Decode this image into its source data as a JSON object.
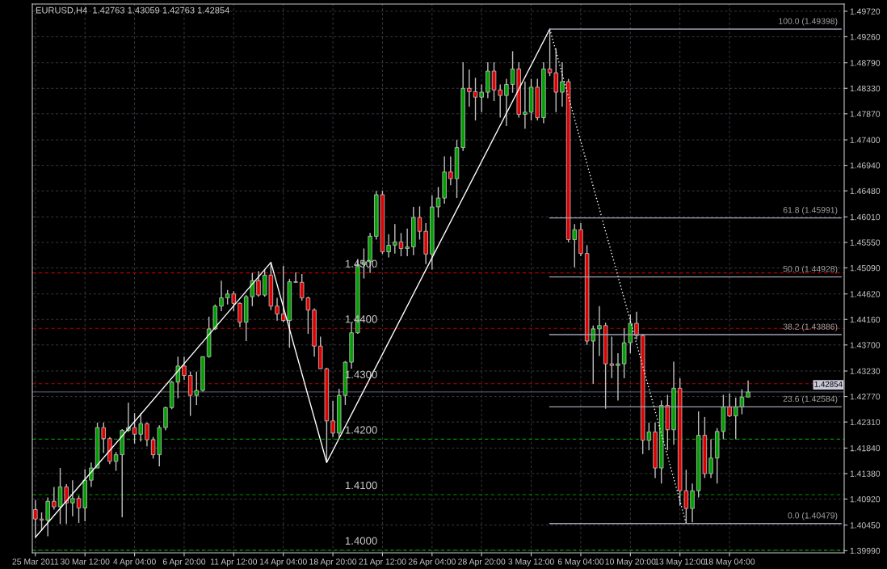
{
  "chart_data": {
    "type": "candlestick",
    "title": "EURUSD,H4  1.42763 1.43059 1.42763 1.42854",
    "categories": [
      "25 Mar 2011",
      null,
      null,
      null,
      null,
      null,
      null,
      null,
      "30 Mar 12:00",
      null,
      null,
      null,
      null,
      null,
      null,
      null,
      "4 Apr 04:00",
      null,
      null,
      null,
      null,
      null,
      null,
      null,
      "6 Apr 20:00",
      null,
      null,
      null,
      null,
      null,
      null,
      null,
      "11 Apr 12:00",
      null,
      null,
      null,
      null,
      null,
      null,
      null,
      "14 Apr 04:00",
      null,
      null,
      null,
      null,
      null,
      null,
      null,
      "18 Apr 20:00",
      null,
      null,
      null,
      null,
      null,
      null,
      null,
      "21 Apr 12:00",
      null,
      null,
      null,
      null,
      null,
      null,
      null,
      "26 Apr 04:00",
      null,
      null,
      null,
      null,
      null,
      null,
      null,
      "28 Apr 20:00",
      null,
      null,
      null,
      null,
      null,
      null,
      null,
      "3 May 12:00",
      null,
      null,
      null,
      null,
      null,
      null,
      null,
      "6 May 04:00",
      null,
      null,
      null,
      null,
      null,
      null,
      null,
      "10 May 20:00",
      null,
      null,
      null,
      null,
      null,
      null,
      null,
      "13 May 12:00",
      null,
      null,
      null,
      null,
      null,
      null,
      null,
      "18 May 04:00",
      null,
      null,
      null,
      null,
      null,
      null,
      null,
      null,
      null,
      null,
      null,
      null,
      null,
      null,
      null,
      null,
      null,
      null
    ],
    "ohlc": [
      [
        1.4073,
        1.409,
        1.4023,
        1.4056
      ],
      [
        1.4056,
        1.4068,
        1.4035,
        1.4054
      ],
      [
        1.4054,
        1.4095,
        1.4025,
        1.4088
      ],
      [
        1.4088,
        1.4114,
        1.4073,
        1.4078
      ],
      [
        1.4078,
        1.4148,
        1.4047,
        1.4114
      ],
      [
        1.4114,
        1.4119,
        1.4047,
        1.4085
      ],
      [
        1.4085,
        1.4126,
        1.4061,
        1.4093
      ],
      [
        1.4093,
        1.4098,
        1.4049,
        1.4076
      ],
      [
        1.4076,
        1.4146,
        1.4052,
        1.4126
      ],
      [
        1.4126,
        1.4158,
        1.4114,
        1.4148
      ],
      [
        1.4148,
        1.423,
        1.4148,
        1.4221
      ],
      [
        1.4221,
        1.423,
        1.4175,
        1.4201
      ],
      [
        1.4201,
        1.4204,
        1.4155,
        1.416
      ],
      [
        1.416,
        1.4177,
        1.4143,
        1.4172
      ],
      [
        1.4172,
        1.4218,
        1.4059,
        1.4216
      ],
      [
        1.4216,
        1.4266,
        1.4213,
        1.4221
      ],
      [
        1.4221,
        1.4247,
        1.4192,
        1.4209
      ],
      [
        1.4209,
        1.4247,
        1.4196,
        1.4228
      ],
      [
        1.4228,
        1.423,
        1.4187,
        1.4199
      ],
      [
        1.4199,
        1.4204,
        1.4165,
        1.4172
      ],
      [
        1.4172,
        1.4225,
        1.4151,
        1.4221
      ],
      [
        1.4221,
        1.4259,
        1.4216,
        1.4257
      ],
      [
        1.4257,
        1.4305,
        1.4254,
        1.4303
      ],
      [
        1.4303,
        1.4349,
        1.4274,
        1.4332
      ],
      [
        1.4332,
        1.4349,
        1.4307,
        1.4315
      ],
      [
        1.4315,
        1.4322,
        1.4242,
        1.4279
      ],
      [
        1.4279,
        1.4322,
        1.4262,
        1.4288
      ],
      [
        1.4288,
        1.4349,
        1.4286,
        1.4349
      ],
      [
        1.4349,
        1.4421,
        1.4347,
        1.4399
      ],
      [
        1.4399,
        1.4443,
        1.4397,
        1.444
      ],
      [
        1.444,
        1.4486,
        1.4431,
        1.4455
      ],
      [
        1.4455,
        1.4469,
        1.4443,
        1.4462
      ],
      [
        1.4462,
        1.4467,
        1.4431,
        1.4445
      ],
      [
        1.4445,
        1.4447,
        1.4402,
        1.4411
      ],
      [
        1.4411,
        1.446,
        1.4377,
        1.4457
      ],
      [
        1.4457,
        1.45,
        1.444,
        1.4486
      ],
      [
        1.4486,
        1.4503,
        1.4457,
        1.446
      ],
      [
        1.446,
        1.4505,
        1.4457,
        1.4496
      ],
      [
        1.4496,
        1.4519,
        1.4433,
        1.444
      ],
      [
        1.444,
        1.4455,
        1.4414,
        1.4426
      ],
      [
        1.4426,
        1.4513,
        1.4411,
        1.4414
      ],
      [
        1.4414,
        1.4489,
        1.4365,
        1.4484
      ],
      [
        1.4484,
        1.4501,
        1.4482,
        1.4483
      ],
      [
        1.4483,
        1.4498,
        1.445,
        1.4455
      ],
      [
        1.4455,
        1.4457,
        1.439,
        1.4433
      ],
      [
        1.4433,
        1.4436,
        1.4349,
        1.4368
      ],
      [
        1.4368,
        1.4385,
        1.4327,
        1.4327
      ],
      [
        1.4327,
        1.4329,
        1.4158,
        1.4233
      ],
      [
        1.4233,
        1.4269,
        1.4204,
        1.4211
      ],
      [
        1.4211,
        1.4291,
        1.4204,
        1.4279
      ],
      [
        1.4279,
        1.4341,
        1.4262,
        1.4339
      ],
      [
        1.4339,
        1.4411,
        1.4327,
        1.4392
      ],
      [
        1.4392,
        1.4525,
        1.439,
        1.4515
      ],
      [
        1.4515,
        1.4544,
        1.449,
        1.452
      ],
      [
        1.452,
        1.4572,
        1.45,
        1.4566
      ],
      [
        1.4566,
        1.4648,
        1.456,
        1.4641
      ],
      [
        1.4641,
        1.4648,
        1.4534,
        1.4538
      ],
      [
        1.4538,
        1.457,
        1.4528,
        1.455
      ],
      [
        1.455,
        1.4588,
        1.4535,
        1.4556
      ],
      [
        1.4556,
        1.4572,
        1.453,
        1.4544
      ],
      [
        1.4544,
        1.458,
        1.453,
        1.4547
      ],
      [
        1.4547,
        1.4619,
        1.4532,
        1.46
      ],
      [
        1.46,
        1.462,
        1.456,
        1.4575
      ],
      [
        1.4575,
        1.459,
        1.4516,
        1.4534
      ],
      [
        1.4534,
        1.464,
        1.4506,
        1.4619
      ],
      [
        1.4619,
        1.4655,
        1.46,
        1.4635
      ],
      [
        1.4635,
        1.471,
        1.4625,
        1.4682
      ],
      [
        1.4682,
        1.471,
        1.4658,
        1.467
      ],
      [
        1.467,
        1.474,
        1.4635,
        1.4726
      ],
      [
        1.4726,
        1.488,
        1.472,
        1.4833
      ],
      [
        1.4833,
        1.4867,
        1.48,
        1.4827
      ],
      [
        1.4827,
        1.4852,
        1.4775,
        1.4817
      ],
      [
        1.4817,
        1.484,
        1.479,
        1.4826
      ],
      [
        1.4826,
        1.488,
        1.4815,
        1.4864
      ],
      [
        1.4864,
        1.488,
        1.481,
        1.483
      ],
      [
        1.483,
        1.484,
        1.478,
        1.482
      ],
      [
        1.482,
        1.485,
        1.4765,
        1.484
      ],
      [
        1.484,
        1.49,
        1.4825,
        1.4868
      ],
      [
        1.4868,
        1.488,
        1.478,
        1.4786
      ],
      [
        1.4786,
        1.4845,
        1.476,
        1.479
      ],
      [
        1.479,
        1.485,
        1.4775,
        1.4835
      ],
      [
        1.4835,
        1.485,
        1.4775,
        1.478
      ],
      [
        1.478,
        1.488,
        1.477,
        1.4868
      ],
      [
        1.4868,
        1.494,
        1.4855,
        1.4861
      ],
      [
        1.4861,
        1.4905,
        1.479,
        1.4826
      ],
      [
        1.4826,
        1.488,
        1.48,
        1.4845
      ],
      [
        1.4845,
        1.485,
        1.4555,
        1.456
      ],
      [
        1.456,
        1.4588,
        1.451,
        1.4578
      ],
      [
        1.4578,
        1.459,
        1.453,
        1.4535
      ],
      [
        1.4535,
        1.455,
        1.437,
        1.4377
      ],
      [
        1.4377,
        1.4405,
        1.43,
        1.4399
      ],
      [
        1.4399,
        1.444,
        1.435,
        1.4405
      ],
      [
        1.4405,
        1.441,
        1.4255,
        1.4336
      ],
      [
        1.4336,
        1.4385,
        1.431,
        1.4333
      ],
      [
        1.4333,
        1.4355,
        1.427,
        1.4336
      ],
      [
        1.4336,
        1.44,
        1.431,
        1.4374
      ],
      [
        1.4374,
        1.4425,
        1.4355,
        1.4409
      ],
      [
        1.4409,
        1.443,
        1.438,
        1.4387
      ],
      [
        1.4387,
        1.439,
        1.4173,
        1.4198
      ],
      [
        1.4198,
        1.423,
        1.418,
        1.4213
      ],
      [
        1.4213,
        1.423,
        1.413,
        1.4148
      ],
      [
        1.4148,
        1.427,
        1.412,
        1.4261
      ],
      [
        1.4261,
        1.428,
        1.418,
        1.4217
      ],
      [
        1.4217,
        1.434,
        1.419,
        1.4292
      ],
      [
        1.4292,
        1.431,
        1.408,
        1.4107
      ],
      [
        1.4107,
        1.4145,
        1.4048,
        1.4075
      ],
      [
        1.4075,
        1.412,
        1.405,
        1.4107
      ],
      [
        1.4107,
        1.425,
        1.4095,
        1.4207
      ],
      [
        1.4207,
        1.424,
        1.413,
        1.4138
      ],
      [
        1.4138,
        1.42,
        1.413,
        1.4166
      ],
      [
        1.4166,
        1.422,
        1.412,
        1.4214
      ],
      [
        1.4214,
        1.428,
        1.42,
        1.4258
      ],
      [
        1.4258,
        1.4283,
        1.424,
        1.4242
      ],
      [
        1.4242,
        1.4275,
        1.42,
        1.4258
      ],
      [
        1.4258,
        1.429,
        1.4245,
        1.4276
      ],
      [
        1.4276,
        1.4306,
        1.4276,
        1.4285
      ],
      null,
      null,
      null,
      null,
      null,
      null,
      null,
      null,
      null,
      null,
      null,
      null,
      null,
      null,
      null
    ],
    "colors": [
      "#e00000",
      "#e00000",
      "#00a000",
      "#e00000",
      "#00a000",
      "#e00000",
      "#00a000",
      "#e00000",
      "#00a000",
      "#00a000",
      "#00a000",
      "#e00000",
      "#e00000",
      "#00a000",
      "#00a000",
      "#00a000",
      "#e00000",
      "#00a000",
      "#e00000",
      "#e00000",
      "#00a000",
      "#00a000",
      "#00a000",
      "#00a000",
      "#e00000",
      "#e00000",
      "#00a000",
      "#00a000",
      "#00a000",
      "#00a000",
      "#00a000",
      "#00a000",
      "#e00000",
      "#e00000",
      "#00a000",
      "#00a000",
      "#e00000",
      "#00a000",
      "#e00000",
      "#e00000",
      "#e00000",
      "#00a000",
      "#e00000",
      "#e00000",
      "#e00000",
      "#e00000",
      "#e00000",
      "#e00000",
      "#e00000",
      "#00a000",
      "#00a000",
      "#00a000",
      "#00a000",
      "#00a000",
      "#00a000",
      "#00a000",
      "#e00000",
      "#00a000",
      "#00a000",
      "#e00000",
      "#00a000",
      "#00a000",
      "#e00000",
      "#e00000",
      "#00a000",
      "#00a000",
      "#00a000",
      "#e00000",
      "#00a000",
      "#00a000",
      "#e00000",
      "#e00000",
      "#00a000",
      "#00a000",
      "#e00000",
      "#e00000",
      "#00a000",
      "#00a000",
      "#e00000",
      "#00a000",
      "#00a000",
      "#e00000",
      "#00a000",
      "#e00000",
      "#e00000",
      "#00a000",
      "#e00000",
      "#00a000",
      "#e00000",
      "#e00000",
      "#00a000",
      "#00a000",
      "#e00000",
      "#e00000",
      "#00a000",
      "#00a000",
      "#00a000",
      "#e00000",
      "#e00000",
      "#00a000",
      "#e00000",
      "#00a000",
      "#e00000",
      "#00a000",
      "#e00000",
      "#e00000",
      "#00a000",
      "#00a000",
      "#e00000",
      "#00a000",
      "#00a000",
      "#00a000",
      "#e00000",
      "#00a000",
      "#00a000",
      "#00a000",
      null,
      null,
      null,
      null,
      null,
      null,
      null,
      null,
      null,
      null,
      null,
      null,
      null,
      null,
      null
    ],
    "series": [
      {
        "type": "line",
        "color": "#ffffff",
        "values": [
          1.4023,
          null,
          null,
          null,
          null,
          null,
          null,
          null,
          null,
          null,
          null,
          null,
          null,
          null,
          null,
          null,
          null,
          null,
          null,
          null,
          null,
          null,
          null,
          null,
          null,
          null,
          null,
          null,
          null,
          null,
          null,
          null,
          null,
          null,
          null,
          null,
          null,
          null,
          1.4519,
          null,
          null,
          null,
          null,
          null,
          null,
          null,
          null,
          1.4158,
          null,
          null,
          null,
          null,
          null,
          null,
          null,
          null,
          null,
          null,
          null,
          null,
          null,
          null,
          null,
          null,
          null,
          null,
          null,
          null,
          null,
          null,
          null,
          null,
          null,
          null,
          null,
          null,
          null,
          null,
          null,
          null,
          null,
          null,
          null,
          1.494,
          null,
          null,
          null,
          null,
          null,
          null,
          null,
          null,
          null,
          null,
          null,
          null,
          null,
          null,
          null,
          null,
          null,
          null,
          null,
          null,
          null,
          null,
          null,
          null,
          null,
          null,
          null,
          null,
          null,
          null,
          null,
          null,
          null,
          null,
          null,
          null,
          null,
          null,
          null,
          null,
          null,
          null,
          null,
          null,
          null,
          null,
          null
        ]
      },
      {
        "type": "line",
        "color": "#ffffff",
        "line_style": "dotted",
        "values": [
          null,
          null,
          null,
          null,
          null,
          null,
          null,
          null,
          null,
          null,
          null,
          null,
          null,
          null,
          null,
          null,
          null,
          null,
          null,
          null,
          null,
          null,
          null,
          null,
          null,
          null,
          null,
          null,
          null,
          null,
          null,
          null,
          null,
          null,
          null,
          null,
          null,
          null,
          null,
          null,
          null,
          null,
          null,
          null,
          null,
          null,
          null,
          null,
          null,
          null,
          null,
          null,
          null,
          null,
          null,
          null,
          null,
          null,
          null,
          null,
          null,
          null,
          null,
          null,
          null,
          null,
          null,
          null,
          null,
          null,
          null,
          null,
          null,
          null,
          null,
          null,
          null,
          null,
          null,
          null,
          null,
          null,
          null,
          1.494,
          null,
          null,
          null,
          null,
          null,
          null,
          null,
          null,
          null,
          null,
          null,
          null,
          null,
          null,
          null,
          null,
          null,
          null,
          null,
          null,
          null,
          1.4048,
          null,
          null,
          null,
          null,
          null,
          null,
          null,
          null,
          null,
          null,
          null,
          null,
          null,
          null,
          null,
          null,
          null,
          null,
          null,
          null,
          null,
          null,
          null,
          null,
          null
        ]
      },
      {
        "type": "line",
        "name": "100.0 (1.49398)",
        "color": "#a0a0b0",
        "values": [
          null,
          null,
          null,
          null,
          null,
          null,
          null,
          null,
          null,
          null,
          null,
          null,
          null,
          null,
          null,
          null,
          null,
          null,
          null,
          null,
          null,
          null,
          null,
          null,
          null,
          null,
          null,
          null,
          null,
          null,
          null,
          null,
          null,
          null,
          null,
          null,
          null,
          null,
          null,
          null,
          null,
          null,
          null,
          null,
          null,
          null,
          null,
          null,
          null,
          null,
          null,
          null,
          null,
          null,
          null,
          null,
          null,
          null,
          null,
          null,
          null,
          null,
          null,
          null,
          null,
          null,
          null,
          null,
          null,
          null,
          null,
          null,
          null,
          null,
          null,
          null,
          null,
          null,
          null,
          null,
          null,
          null,
          null,
          1.49398,
          1.49398,
          1.49398,
          1.49398,
          1.49398,
          1.49398,
          1.49398,
          1.49398,
          1.49398,
          1.49398,
          1.49398,
          1.49398,
          1.49398,
          1.49398,
          1.49398,
          1.49398,
          1.49398,
          1.49398,
          1.49398,
          1.49398,
          1.49398,
          1.49398,
          1.49398,
          1.49398,
          1.49398,
          1.49398,
          1.49398,
          1.49398,
          1.49398,
          1.49398,
          1.49398,
          1.49398,
          1.49398,
          1.49398,
          1.49398,
          1.49398,
          1.49398,
          1.49398,
          1.49398,
          1.49398,
          1.49398,
          1.49398,
          1.49398,
          1.49398,
          1.49398,
          1.49398,
          1.49398,
          1.49398
        ]
      },
      {
        "type": "line",
        "name": "61.8 (1.45991)",
        "color": "#a0a0b0",
        "values": [
          null,
          null,
          null,
          null,
          null,
          null,
          null,
          null,
          null,
          null,
          null,
          null,
          null,
          null,
          null,
          null,
          null,
          null,
          null,
          null,
          null,
          null,
          null,
          null,
          null,
          null,
          null,
          null,
          null,
          null,
          null,
          null,
          null,
          null,
          null,
          null,
          null,
          null,
          null,
          null,
          null,
          null,
          null,
          null,
          null,
          null,
          null,
          null,
          null,
          null,
          null,
          null,
          null,
          null,
          null,
          null,
          null,
          null,
          null,
          null,
          null,
          null,
          null,
          null,
          null,
          null,
          null,
          null,
          null,
          null,
          null,
          null,
          null,
          null,
          null,
          null,
          null,
          null,
          null,
          null,
          null,
          null,
          null,
          1.45991,
          1.45991,
          1.45991,
          1.45991,
          1.45991,
          1.45991,
          1.45991,
          1.45991,
          1.45991,
          1.45991,
          1.45991,
          1.45991,
          1.45991,
          1.45991,
          1.45991,
          1.45991,
          1.45991,
          1.45991,
          1.45991,
          1.45991,
          1.45991,
          1.45991,
          1.45991,
          1.45991,
          1.45991,
          1.45991,
          1.45991,
          1.45991,
          1.45991,
          1.45991,
          1.45991,
          1.45991,
          1.45991,
          1.45991,
          1.45991,
          1.45991,
          1.45991,
          1.45991,
          1.45991,
          1.45991,
          1.45991,
          1.45991,
          1.45991,
          1.45991,
          1.45991,
          1.45991,
          1.45991,
          1.45991
        ]
      },
      {
        "type": "line",
        "name": "50.0 (1.44928)",
        "color": "#a0a0b0",
        "values": [
          null,
          null,
          null,
          null,
          null,
          null,
          null,
          null,
          null,
          null,
          null,
          null,
          null,
          null,
          null,
          null,
          null,
          null,
          null,
          null,
          null,
          null,
          null,
          null,
          null,
          null,
          null,
          null,
          null,
          null,
          null,
          null,
          null,
          null,
          null,
          null,
          null,
          null,
          null,
          null,
          null,
          null,
          null,
          null,
          null,
          null,
          null,
          null,
          null,
          null,
          null,
          null,
          null,
          null,
          null,
          null,
          null,
          null,
          null,
          null,
          null,
          null,
          null,
          null,
          null,
          null,
          null,
          null,
          null,
          null,
          null,
          null,
          null,
          null,
          null,
          null,
          null,
          null,
          null,
          null,
          null,
          null,
          null,
          1.44928,
          1.44928,
          1.44928,
          1.44928,
          1.44928,
          1.44928,
          1.44928,
          1.44928,
          1.44928,
          1.44928,
          1.44928,
          1.44928,
          1.44928,
          1.44928,
          1.44928,
          1.44928,
          1.44928,
          1.44928,
          1.44928,
          1.44928,
          1.44928,
          1.44928,
          1.44928,
          1.44928,
          1.44928,
          1.44928,
          1.44928,
          1.44928,
          1.44928,
          1.44928,
          1.44928,
          1.44928,
          1.44928,
          1.44928,
          1.44928,
          1.44928,
          1.44928,
          1.44928,
          1.44928,
          1.44928,
          1.44928,
          1.44928,
          1.44928,
          1.44928,
          1.44928,
          1.44928,
          1.44928,
          1.44928
        ]
      },
      {
        "type": "line",
        "name": "38.2 (1.43886)",
        "color": "#a0a0b0",
        "values": [
          null,
          null,
          null,
          null,
          null,
          null,
          null,
          null,
          null,
          null,
          null,
          null,
          null,
          null,
          null,
          null,
          null,
          null,
          null,
          null,
          null,
          null,
          null,
          null,
          null,
          null,
          null,
          null,
          null,
          null,
          null,
          null,
          null,
          null,
          null,
          null,
          null,
          null,
          null,
          null,
          null,
          null,
          null,
          null,
          null,
          null,
          null,
          null,
          null,
          null,
          null,
          null,
          null,
          null,
          null,
          null,
          null,
          null,
          null,
          null,
          null,
          null,
          null,
          null,
          null,
          null,
          null,
          null,
          null,
          null,
          null,
          null,
          null,
          null,
          null,
          null,
          null,
          null,
          null,
          null,
          null,
          null,
          null,
          1.43886,
          1.43886,
          1.43886,
          1.43886,
          1.43886,
          1.43886,
          1.43886,
          1.43886,
          1.43886,
          1.43886,
          1.43886,
          1.43886,
          1.43886,
          1.43886,
          1.43886,
          1.43886,
          1.43886,
          1.43886,
          1.43886,
          1.43886,
          1.43886,
          1.43886,
          1.43886,
          1.43886,
          1.43886,
          1.43886,
          1.43886,
          1.43886,
          1.43886,
          1.43886,
          1.43886,
          1.43886,
          1.43886,
          1.43886,
          1.43886,
          1.43886,
          1.43886,
          1.43886,
          1.43886,
          1.43886,
          1.43886,
          1.43886,
          1.43886,
          1.43886,
          1.43886,
          1.43886,
          1.43886,
          1.43886
        ]
      },
      {
        "type": "line",
        "name": "23.6 (1.42584)",
        "color": "#a0a0b0",
        "values": [
          null,
          null,
          null,
          null,
          null,
          null,
          null,
          null,
          null,
          null,
          null,
          null,
          null,
          null,
          null,
          null,
          null,
          null,
          null,
          null,
          null,
          null,
          null,
          null,
          null,
          null,
          null,
          null,
          null,
          null,
          null,
          null,
          null,
          null,
          null,
          null,
          null,
          null,
          null,
          null,
          null,
          null,
          null,
          null,
          null,
          null,
          null,
          null,
          null,
          null,
          null,
          null,
          null,
          null,
          null,
          null,
          null,
          null,
          null,
          null,
          null,
          null,
          null,
          null,
          null,
          null,
          null,
          null,
          null,
          null,
          null,
          null,
          null,
          null,
          null,
          null,
          null,
          null,
          null,
          null,
          null,
          null,
          null,
          1.42584,
          1.42584,
          1.42584,
          1.42584,
          1.42584,
          1.42584,
          1.42584,
          1.42584,
          1.42584,
          1.42584,
          1.42584,
          1.42584,
          1.42584,
          1.42584,
          1.42584,
          1.42584,
          1.42584,
          1.42584,
          1.42584,
          1.42584,
          1.42584,
          1.42584,
          1.42584,
          1.42584,
          1.42584,
          1.42584,
          1.42584,
          1.42584,
          1.42584,
          1.42584,
          1.42584,
          1.42584,
          1.42584,
          1.42584,
          1.42584,
          1.42584,
          1.42584,
          1.42584,
          1.42584,
          1.42584,
          1.42584,
          1.42584,
          1.42584,
          1.42584,
          1.42584,
          1.42584,
          1.42584,
          1.42584
        ]
      },
      {
        "type": "line",
        "name": "0.0 (1.40479)",
        "color": "#a0a0b0",
        "values": [
          null,
          null,
          null,
          null,
          null,
          null,
          null,
          null,
          null,
          null,
          null,
          null,
          null,
          null,
          null,
          null,
          null,
          null,
          null,
          null,
          null,
          null,
          null,
          null,
          null,
          null,
          null,
          null,
          null,
          null,
          null,
          null,
          null,
          null,
          null,
          null,
          null,
          null,
          null,
          null,
          null,
          null,
          null,
          null,
          null,
          null,
          null,
          null,
          null,
          null,
          null,
          null,
          null,
          null,
          null,
          null,
          null,
          null,
          null,
          null,
          null,
          null,
          null,
          null,
          null,
          null,
          null,
          null,
          null,
          null,
          null,
          null,
          null,
          null,
          null,
          null,
          null,
          null,
          null,
          null,
          null,
          null,
          null,
          1.40479,
          1.40479,
          1.40479,
          1.40479,
          1.40479,
          1.40479,
          1.40479,
          1.40479,
          1.40479,
          1.40479,
          1.40479,
          1.40479,
          1.40479,
          1.40479,
          1.40479,
          1.40479,
          1.40479,
          1.40479,
          1.40479,
          1.40479,
          1.40479,
          1.40479,
          1.40479,
          1.40479,
          1.40479,
          1.40479,
          1.40479,
          1.40479,
          1.40479,
          1.40479,
          1.40479,
          1.40479,
          1.40479,
          1.40479,
          1.40479,
          1.40479,
          1.40479,
          1.40479,
          1.40479,
          1.40479,
          1.40479,
          1.40479,
          1.40479,
          1.40479,
          1.40479,
          1.40479,
          1.40479,
          1.40479
        ]
      }
    ],
    "ref_lines": [
      {
        "axis": "y",
        "value": 1.45,
        "label": "1.4500",
        "color": "#b00000",
        "line_style": "dashed"
      },
      {
        "axis": "y",
        "value": 1.44,
        "label": "1.4400",
        "color": "#b00000",
        "line_style": "dashed"
      },
      {
        "axis": "y",
        "value": 1.43,
        "label": "1.4300",
        "color": "#b00000",
        "line_style": "dashed"
      },
      {
        "axis": "y",
        "value": 1.42,
        "label": "1.4200",
        "color": "#009000",
        "line_style": "dashed"
      },
      {
        "axis": "y",
        "value": 1.41,
        "label": "1.4100",
        "color": "#009000",
        "line_style": "dashed"
      },
      {
        "axis": "y",
        "value": 1.4,
        "label": "1.4000",
        "color": "#009000",
        "line_style": "dashed"
      },
      {
        "axis": "y",
        "value": 1.42854,
        "label": "1.42854",
        "color": "#505060",
        "line_style": "solid"
      }
    ],
    "ylim": [
      1.3995,
      1.4985
    ],
    "yticks": [
      {
        "value": 1.4972,
        "label": "1.49720"
      },
      {
        "value": 1.4926,
        "label": "1.49260"
      },
      {
        "value": 1.4879,
        "label": "1.48790"
      },
      {
        "value": 1.4833,
        "label": "1.48330"
      },
      {
        "value": 1.4787,
        "label": "1.47870"
      },
      {
        "value": 1.474,
        "label": "1.47400"
      },
      {
        "value": 1.4694,
        "label": "1.46940"
      },
      {
        "value": 1.4648,
        "label": "1.46480"
      },
      {
        "value": 1.4601,
        "label": "1.46010"
      },
      {
        "value": 1.4555,
        "label": "1.45550"
      },
      {
        "value": 1.4509,
        "label": "1.45090"
      },
      {
        "value": 1.4462,
        "label": "1.44620"
      },
      {
        "value": 1.4416,
        "label": "1.44160"
      },
      {
        "value": 1.437,
        "label": "1.43700"
      },
      {
        "value": 1.4323,
        "label": "1.43230"
      },
      {
        "value": 1.4277,
        "label": "1.42770"
      },
      {
        "value": 1.4231,
        "label": "1.42310"
      },
      {
        "value": 1.4184,
        "label": "1.41840"
      },
      {
        "value": 1.4138,
        "label": "1.41380"
      },
      {
        "value": 1.4092,
        "label": "1.40920"
      },
      {
        "value": 1.4045,
        "label": "1.40450"
      },
      {
        "value": 1.3999,
        "label": "1.39990"
      }
    ],
    "grid": true
  }
}
